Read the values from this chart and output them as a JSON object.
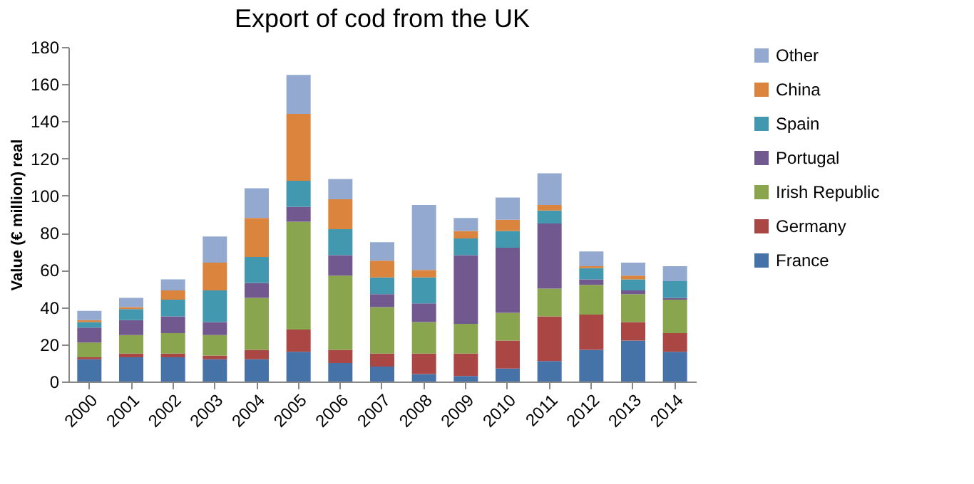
{
  "chart_data": {
    "type": "bar",
    "stacked": true,
    "title": "Export of cod from the UK",
    "ylabel": "Value (€ million) real",
    "categories": [
      "2000",
      "2001",
      "2002",
      "2003",
      "2004",
      "2005",
      "2006",
      "2007",
      "2008",
      "2009",
      "2010",
      "2011",
      "2012",
      "2013",
      "2014"
    ],
    "series": [
      {
        "name": "France",
        "color": "#4572a7",
        "values": [
          12,
          13,
          13,
          12,
          12,
          16,
          10,
          8,
          4,
          3,
          7,
          11,
          17,
          22,
          16
        ]
      },
      {
        "name": "Germany",
        "color": "#aa4643",
        "values": [
          1,
          2,
          2,
          2,
          5,
          12,
          7,
          7,
          11,
          12,
          15,
          24,
          19,
          10,
          10
        ]
      },
      {
        "name": "Irish Republic",
        "color": "#89a54e",
        "values": [
          8,
          10,
          11,
          11,
          28,
          58,
          40,
          25,
          17,
          16,
          15,
          15,
          16,
          15,
          18
        ]
      },
      {
        "name": "Portugal",
        "color": "#71588f",
        "values": [
          8,
          8,
          9,
          7,
          8,
          8,
          11,
          7,
          10,
          37,
          35,
          35,
          3,
          2,
          1
        ]
      },
      {
        "name": "Spain",
        "color": "#4198af",
        "values": [
          3,
          6,
          9,
          17,
          14,
          14,
          14,
          9,
          14,
          9,
          9,
          7,
          6,
          6,
          9
        ]
      },
      {
        "name": "China",
        "color": "#db843d",
        "values": [
          1,
          1,
          5,
          15,
          21,
          36,
          16,
          9,
          4,
          4,
          6,
          3,
          1,
          2,
          0
        ]
      },
      {
        "name": "Other",
        "color": "#93a9cf",
        "values": [
          5,
          5,
          6,
          14,
          16,
          21,
          11,
          10,
          35,
          7,
          12,
          17,
          8,
          7,
          8
        ]
      }
    ],
    "ylim": [
      0,
      180
    ],
    "yticks": [
      0,
      20,
      40,
      60,
      80,
      100,
      120,
      140,
      160,
      180
    ],
    "grid": false,
    "legend": "right"
  }
}
